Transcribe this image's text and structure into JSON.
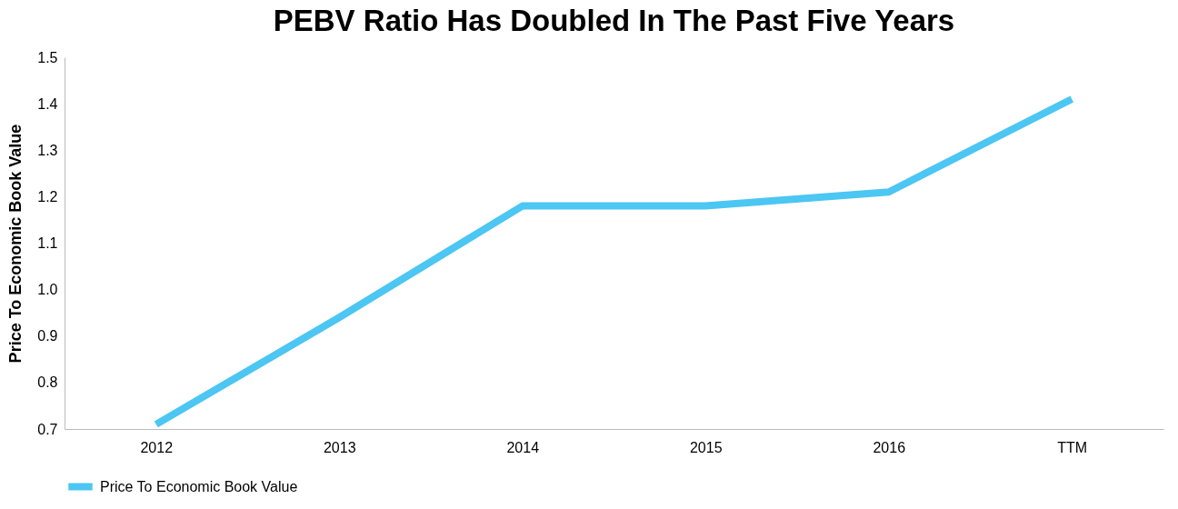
{
  "chart_data": {
    "type": "line",
    "title": "PEBV Ratio Has Doubled In The Past Five Years",
    "ylabel": "Price To Economic Book Value",
    "categories": [
      "2012",
      "2013",
      "2014",
      "2015",
      "2016",
      "TTM"
    ],
    "series": [
      {
        "name": "Price To Economic Book Value",
        "color": "#4cc6f2",
        "values": [
          0.71,
          0.94,
          1.18,
          1.18,
          1.21,
          1.41
        ]
      }
    ],
    "ylim": [
      0.7,
      1.5
    ],
    "yticks": [
      {
        "value": 0.7,
        "label": "0.7"
      },
      {
        "value": 0.8,
        "label": "0.8"
      },
      {
        "value": 0.9,
        "label": "0.9"
      },
      {
        "value": 1.0,
        "label": "1.0"
      },
      {
        "value": 1.1,
        "label": "1.1"
      },
      {
        "value": 1.2,
        "label": "1.2"
      },
      {
        "value": 1.3,
        "label": "1.3"
      },
      {
        "value": 1.4,
        "label": "1.4"
      },
      {
        "value": 1.5,
        "label": "1.5"
      }
    ],
    "grid": false,
    "legend": "bottom",
    "marker": "none",
    "line_style": "solid"
  }
}
